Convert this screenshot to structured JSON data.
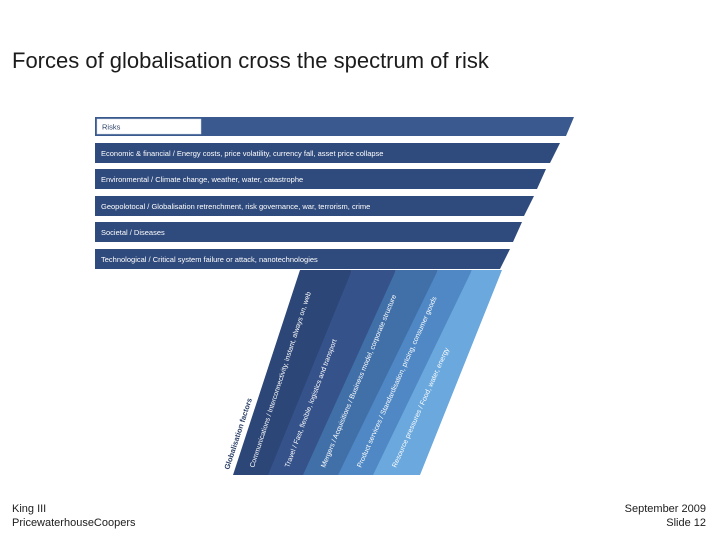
{
  "slide": {
    "title": "Forces of globalisation cross the spectrum of risk"
  },
  "risks": {
    "header": "Risks",
    "rows": [
      "Economic & financial / Energy costs, price volatility, currency fall, asset price collapse",
      "Environmental / Climate change, weather, water, catastrophe",
      "Geopolotocal / Globalisation retrenchment, risk governance, war, terrorism, crime",
      "Societal / Diseases",
      "Technological / Critical system failure or attack, nanotechnologies"
    ]
  },
  "globalisation": {
    "label": "Globalisation factors",
    "factors": [
      "Communications / Interconnectivity, instant, always on, web",
      "Travel / Fast, flexible, logistics and transport",
      "Mergers / Acquisitions / Business model, corporate structure",
      "Product services / Standardisation, pricing, consumer goods",
      "Resource pressures / Food, water, energy"
    ]
  },
  "footer": {
    "left_line1": "King III",
    "left_line2": "PricewaterhouseCoopers",
    "right_line1": "September 2009",
    "right_line2": "Slide 12"
  },
  "colors": {
    "band_primary": "#2f4a7c",
    "band_header": "#3a5a8f",
    "force_1": "#2c4677",
    "force_2": "#35528a",
    "force_3": "#4170a8",
    "force_4": "#4f88c4",
    "force_5": "#6aa8dd"
  }
}
